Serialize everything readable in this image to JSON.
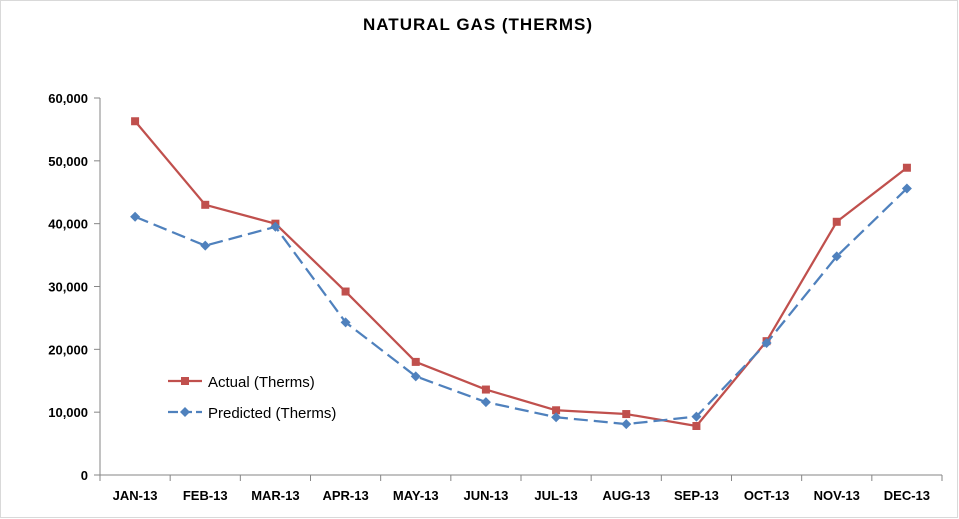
{
  "chart_data": {
    "type": "line",
    "title": "NATURAL GAS (THERMS)",
    "xlabel": "",
    "ylabel": "",
    "categories": [
      "JAN-13",
      "FEB-13",
      "MAR-13",
      "APR-13",
      "MAY-13",
      "JUN-13",
      "JUL-13",
      "AUG-13",
      "SEP-13",
      "OCT-13",
      "NOV-13",
      "DEC-13"
    ],
    "ylim": [
      0,
      60000
    ],
    "yticks": [
      0,
      10000,
      20000,
      30000,
      40000,
      50000,
      60000
    ],
    "ytick_labels": [
      "0",
      "10,000",
      "20,000",
      "30,000",
      "40,000",
      "50,000",
      "60,000"
    ],
    "grid": false,
    "legend_position": "lower-left",
    "series": [
      {
        "name": "Actual (Therms)",
        "color": "#c0504d",
        "marker": "square",
        "dash": "solid",
        "values": [
          56300,
          43000,
          40000,
          29200,
          18000,
          13600,
          10300,
          9700,
          7800,
          21300,
          40300,
          48900
        ]
      },
      {
        "name": "Predicted (Therms)",
        "color": "#4f81bd",
        "marker": "diamond",
        "dash": "dashed",
        "values": [
          41100,
          36500,
          39500,
          24300,
          15700,
          11600,
          9200,
          8100,
          9300,
          21000,
          34800,
          45600
        ]
      }
    ]
  }
}
